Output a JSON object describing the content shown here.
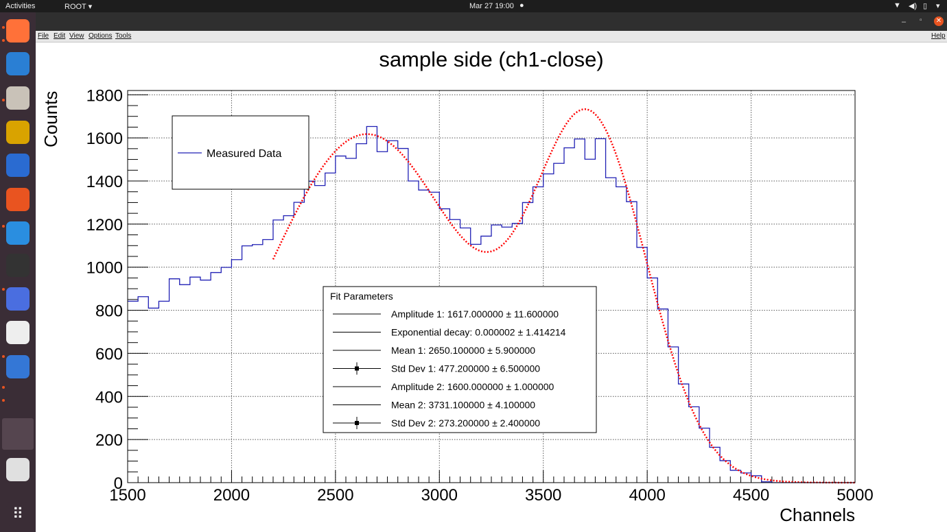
{
  "topbar": {
    "activities": "Activities",
    "app_menu": "ROOT",
    "clock": "Mar 27  19:00"
  },
  "dock": {
    "items": [
      "firefox-icon",
      "thunderbird-icon",
      "files-icon",
      "rhythmbox-icon",
      "libreoffice-writer-icon",
      "software-center-icon",
      "help-icon",
      "terminal-icon",
      "screenshot-icon",
      "document-viewer-icon",
      "text-editor-icon",
      "running-app-icon",
      "removable-drive-icon",
      "show-apps-icon"
    ]
  },
  "menubar": {
    "items": [
      "File",
      "Edit",
      "View",
      "Options",
      "Tools"
    ],
    "help": "Help"
  },
  "colors": {
    "histogram": "#1f1fb4",
    "fit": "#ff0000",
    "topbar": "#1d1d1d",
    "close": "#e95420"
  },
  "chart_data": {
    "type": "histogram",
    "title": "sample side (ch1-close)",
    "xlabel": "Channels",
    "ylabel": "Counts",
    "xlim": [
      1500,
      5000
    ],
    "ylim": [
      0,
      1820
    ],
    "xticks": [
      1500,
      2000,
      2500,
      3000,
      3500,
      4000,
      4500,
      5000
    ],
    "yticks": [
      0,
      200,
      400,
      600,
      800,
      1000,
      1200,
      1400,
      1600,
      1800
    ],
    "grid": true,
    "bin_width": 50,
    "series": [
      {
        "name": "Measured Data",
        "bin_start": 1500,
        "values": [
          842,
          863,
          810,
          842,
          946,
          919,
          954,
          940,
          975,
          999,
          1035,
          1099,
          1105,
          1128,
          1219,
          1239,
          1301,
          1399,
          1379,
          1437,
          1516,
          1505,
          1573,
          1653,
          1536,
          1587,
          1551,
          1400,
          1358,
          1348,
          1271,
          1221,
          1182,
          1106,
          1144,
          1196,
          1186,
          1203,
          1300,
          1373,
          1433,
          1482,
          1554,
          1595,
          1501,
          1596,
          1415,
          1373,
          1304,
          1092,
          950,
          806,
          630,
          458,
          352,
          253,
          164,
          102,
          57,
          45,
          32,
          4,
          0,
          0,
          0,
          0,
          0,
          0,
          0,
          0
        ]
      }
    ],
    "fit": {
      "model": "sum of two gaussians",
      "range": [
        2200,
        5000
      ],
      "amplitude1": 1617.0,
      "mean1": 2650.1,
      "sigma1": 477.2,
      "amplitude2": 1600.0,
      "mean2": 3731.1,
      "sigma2": 273.2
    },
    "legend": {
      "entries": [
        "Measured Data"
      ],
      "placement": "top-left"
    },
    "fit_box": {
      "title": "Fit Parameters",
      "lines": [
        {
          "text": "Amplitude 1: 1617.000000 ± 11.600000",
          "marker": false
        },
        {
          "text": "Exponential decay: 0.000002 ± 1.414214",
          "marker": false
        },
        {
          "text": "Mean 1: 2650.100000 ± 5.900000",
          "marker": false
        },
        {
          "text": "Std Dev 1: 477.200000 ± 6.500000",
          "marker": true
        },
        {
          "text": "Amplitude 2: 1600.000000 ± 1.000000",
          "marker": false
        },
        {
          "text": "Mean 2: 3731.100000 ± 4.100000",
          "marker": false
        },
        {
          "text": "Std Dev 2: 273.200000 ± 2.400000",
          "marker": true
        }
      ]
    }
  }
}
